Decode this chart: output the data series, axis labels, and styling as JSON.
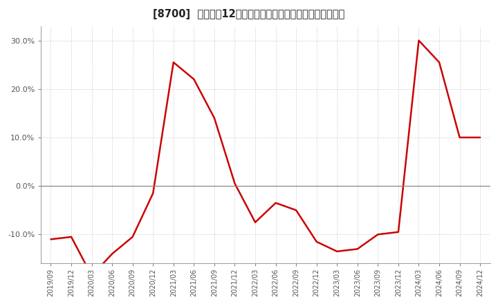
{
  "title": "[8700]  売上高の12か月移動合計の対前年同期増減率の推移",
  "line_color": "#cc0000",
  "background_color": "#ffffff",
  "plot_bg_color": "#ffffff",
  "grid_color": "#bbbbbb",
  "zero_line_color": "#888888",
  "spine_color": "#888888",
  "tick_label_color": "#555555",
  "x_labels": [
    "2019/09",
    "2019/12",
    "2020/03",
    "2020/06",
    "2020/09",
    "2020/12",
    "2021/03",
    "2021/06",
    "2021/09",
    "2021/12",
    "2022/03",
    "2022/06",
    "2022/09",
    "2022/12",
    "2023/03",
    "2023/06",
    "2023/09",
    "2023/12",
    "2024/03",
    "2024/06",
    "2024/09",
    "2024/12"
  ],
  "values": [
    -11.0,
    -10.5,
    -18.5,
    -14.0,
    -10.5,
    -1.5,
    25.5,
    22.0,
    14.0,
    0.5,
    -7.5,
    -3.5,
    -5.0,
    -11.5,
    -13.5,
    -13.0,
    -10.0,
    -9.5,
    30.0,
    25.5,
    10.0,
    10.0
  ],
  "ylim_min": -16,
  "ylim_max": 33,
  "yticks": [
    -10,
    0,
    10,
    20,
    30
  ],
  "ytick_labels": [
    "-10.0%",
    "0.0%",
    "10.0%",
    "20.0%",
    "30.0%"
  ]
}
